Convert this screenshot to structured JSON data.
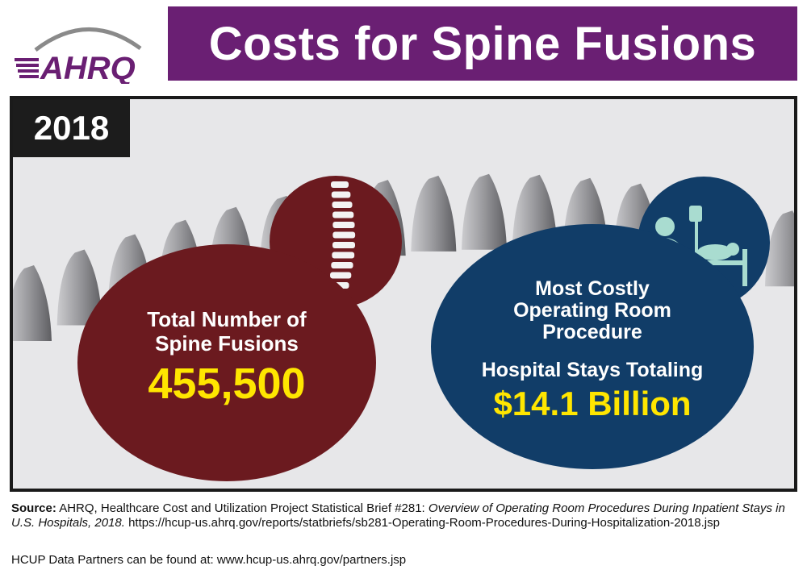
{
  "header": {
    "logo_text": "AHRQ",
    "title": "Costs for Spine Fusions"
  },
  "panel": {
    "year": "2018",
    "left_stat": {
      "label_line1": "Total Number of",
      "label_line2": "Spine Fusions",
      "value": "455,500"
    },
    "right_stat": {
      "label_line1": "Most Costly",
      "label_line2": "Operating Room",
      "label_line3": "Procedure",
      "sub_label": "Hospital Stays Totaling",
      "value": "$14.1 Billion"
    },
    "icons": [
      "spine-x-ray-icon",
      "hospital-patient-icon"
    ]
  },
  "colors": {
    "title_bar": "#6a1f73",
    "left_circle": "#6b1a1f",
    "right_circle": "#113d68",
    "highlight": "#ffe600",
    "icon_teal": "#a9dcd0"
  },
  "footer": {
    "source_label": "Source:",
    "source_text": " AHRQ, Healthcare Cost and Utilization Project Statistical Brief #281: ",
    "source_title": "Overview of Operating Room Procedures During Inpatient Stays in U.S. Hospitals, 2018.",
    "source_url": " https://hcup-us.ahrq.gov/reports/statbriefs/sb281-Operating-Room-Procedures-During-Hospitalization-2018.jsp",
    "partners": "HCUP Data Partners can be found at: www.hcup-us.ahrq.gov/partners.jsp"
  }
}
